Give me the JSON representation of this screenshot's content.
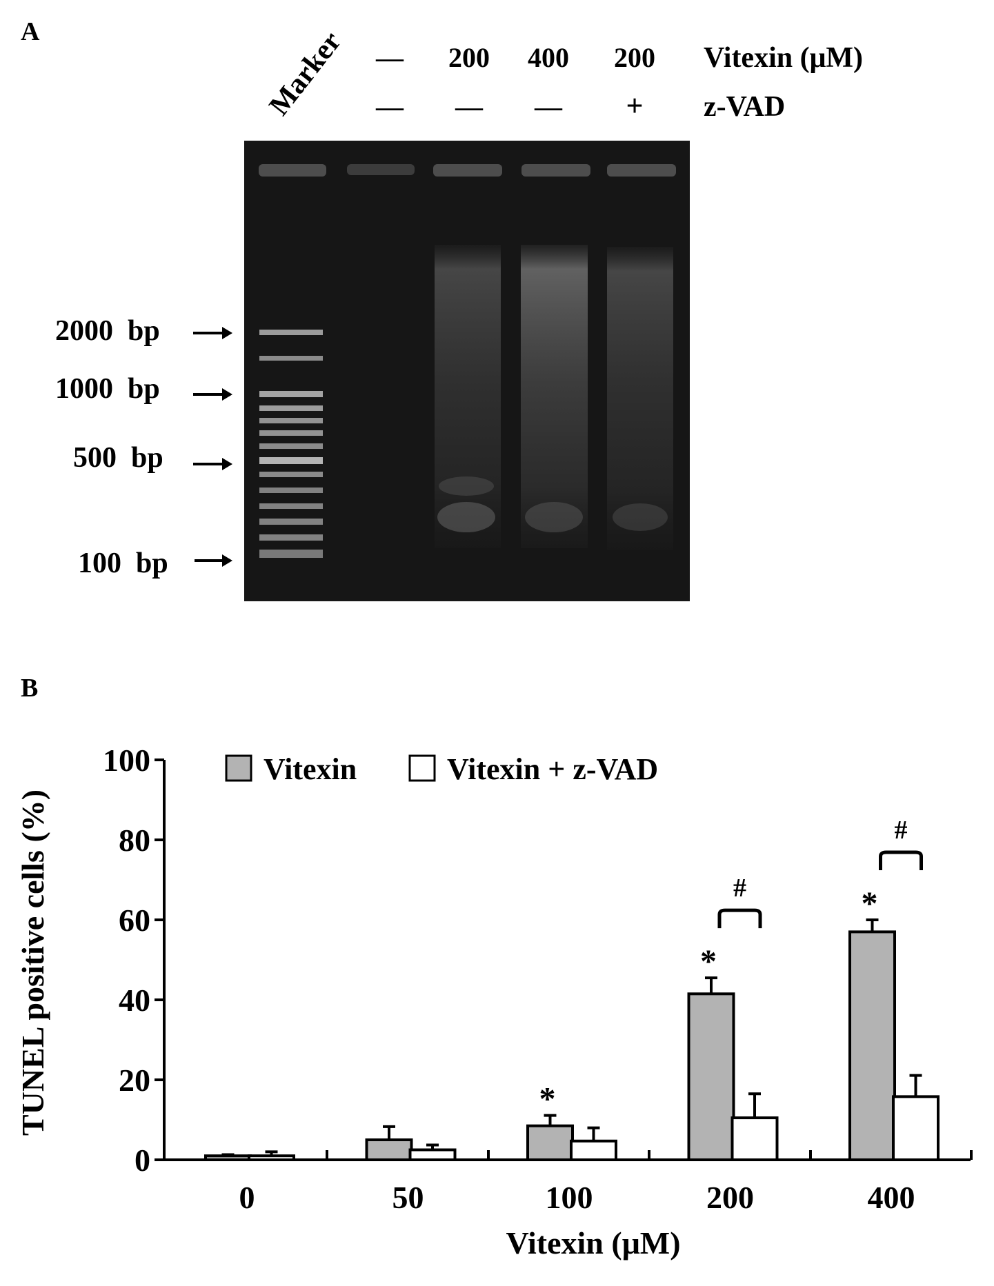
{
  "panel_a": {
    "label": "A",
    "marker_label": "Marker",
    "lanes": [
      {
        "vitexin": "—",
        "zvad": "—"
      },
      {
        "vitexin": "200",
        "zvad": "—"
      },
      {
        "vitexin": "400",
        "zvad": "—"
      },
      {
        "vitexin": "200",
        "zvad": "+"
      }
    ],
    "row_label_vitexin": "Vitexin (μM)",
    "row_label_zvad": "z-VAD",
    "size_markers": [
      "2000  bp",
      "1000  bp",
      "500  bp",
      "100  bp"
    ]
  },
  "panel_b": {
    "label": "B"
  },
  "colors": {
    "vitexin_bar": "#b3b3b3",
    "zvad_bar": "#ffffff",
    "gel_background": "#161616"
  },
  "chart_data": {
    "type": "bar",
    "categories": [
      "0",
      "50",
      "100",
      "200",
      "400"
    ],
    "series": [
      {
        "name": "Vitexin",
        "values": [
          1,
          5,
          8.5,
          41.5,
          57
        ],
        "errors": [
          0.3,
          3.3,
          2.6,
          4.0,
          3.0
        ],
        "annotations": [
          "",
          "",
          "*",
          "*",
          "*"
        ]
      },
      {
        "name": "Vitexin + z-VAD",
        "values": [
          1,
          2.5,
          4.7,
          10.5,
          15.8
        ],
        "errors": [
          1.0,
          1.2,
          3.3,
          6.0,
          5.3
        ]
      }
    ],
    "significance_brackets": [
      {
        "category": "200",
        "label": "#"
      },
      {
        "category": "400",
        "label": "#"
      }
    ],
    "xlabel": "Vitexin (μM)",
    "ylabel": "TUNEL positive cells (%)",
    "ylim": [
      0,
      100
    ],
    "yticks": [
      "0",
      "20",
      "40",
      "60",
      "80",
      "100"
    ],
    "legend": [
      "Vitexin",
      "Vitexin + z-VAD"
    ],
    "legend_position": "top-left",
    "grid": false
  }
}
